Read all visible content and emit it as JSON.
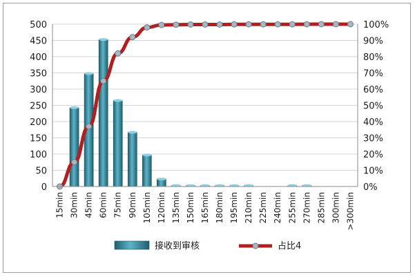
{
  "chart_data": {
    "type": "bar+line",
    "categories": [
      "15min",
      "30min",
      "45min",
      "60min",
      "75min",
      "90min",
      "105min",
      "120min",
      "135min",
      "150min",
      "165min",
      "180min",
      "195min",
      "210min",
      "225min",
      "240min",
      "255min",
      "270min",
      "285min",
      "300min",
      ">300min"
    ],
    "series": [
      {
        "name": "接收到审核",
        "type": "bar",
        "axis": "left",
        "values": [
          0,
          243,
          348,
          453,
          265,
          167,
          97,
          23,
          3,
          3,
          3,
          3,
          3,
          3,
          0,
          0,
          3,
          3,
          0,
          0,
          0
        ]
      },
      {
        "name": "占比4",
        "type": "line",
        "axis": "right",
        "values": [
          0,
          0.15,
          0.37,
          0.65,
          0.82,
          0.92,
          0.98,
          0.995,
          0.997,
          0.998,
          0.998,
          0.998,
          0.999,
          0.999,
          0.999,
          0.999,
          0.999,
          0.9995,
          1.0,
          1.0,
          1.0
        ]
      }
    ],
    "ylim_left": [
      0,
      500
    ],
    "ylim_right": [
      0,
      1
    ],
    "left_ticks": [
      "0",
      "50",
      "100",
      "150",
      "200",
      "250",
      "300",
      "350",
      "400",
      "450",
      "500"
    ],
    "right_ticks": [
      "0%",
      "10%",
      "20%",
      "30%",
      "40%",
      "50%",
      "60%",
      "70%",
      "80%",
      "90%",
      "100%"
    ],
    "grid": "horizontal",
    "legend_position": "bottom",
    "colors": {
      "bar": "#2f8ea4",
      "bar_dark": "#1d5f70",
      "line": "#b02020",
      "marker": "#a9b6c4"
    }
  }
}
